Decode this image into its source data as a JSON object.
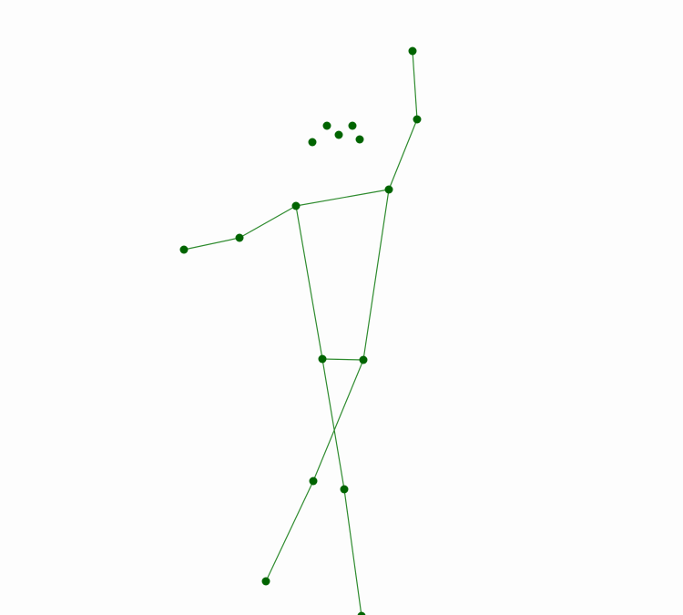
{
  "colors": {
    "background": "#fdfdfd",
    "bone": "#2e8b2e",
    "joint": "#006400"
  },
  "skeleton": {
    "keypoints": [
      {
        "id": "nose"
      },
      {
        "id": "left-eye"
      },
      {
        "id": "right-eye"
      },
      {
        "id": "left-ear"
      },
      {
        "id": "right-ear"
      },
      {
        "id": "left-shoulder"
      },
      {
        "id": "right-shoulder"
      },
      {
        "id": "left-elbow"
      },
      {
        "id": "right-elbow"
      },
      {
        "id": "left-wrist"
      },
      {
        "id": "right-wrist"
      },
      {
        "id": "left-hip"
      },
      {
        "id": "right-hip"
      },
      {
        "id": "left-knee"
      },
      {
        "id": "right-knee"
      },
      {
        "id": "left-ankle"
      },
      {
        "id": "right-ankle"
      }
    ],
    "bones": [
      [
        "left-wrist",
        "left-elbow"
      ],
      [
        "left-elbow",
        "left-shoulder"
      ],
      [
        "left-shoulder",
        "right-shoulder"
      ],
      [
        "right-shoulder",
        "right-elbow"
      ],
      [
        "right-elbow",
        "right-wrist"
      ],
      [
        "left-shoulder",
        "left-hip"
      ],
      [
        "right-shoulder",
        "right-hip"
      ],
      [
        "left-hip",
        "right-hip"
      ],
      [
        "left-hip",
        "left-knee"
      ],
      [
        "left-knee",
        "left-ankle"
      ],
      [
        "right-hip",
        "right-knee"
      ],
      [
        "right-knee",
        "right-ankle"
      ]
    ]
  }
}
